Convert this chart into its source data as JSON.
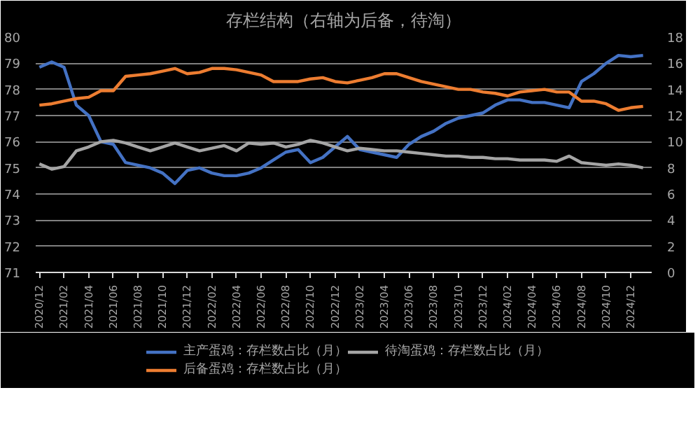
{
  "chart_data": {
    "type": "line",
    "title": "存栏结构（右轴为后备，待淘）",
    "categories": [
      "2020/12",
      null,
      "2021/02",
      null,
      "2021/04",
      null,
      "2021/06",
      null,
      "2021/08",
      null,
      "2021/10",
      null,
      "2021/12",
      null,
      "2022/02",
      null,
      "2022/04",
      null,
      "2022/06",
      null,
      "2022/08",
      null,
      "2022/10",
      null,
      "2022/12",
      null,
      "2023/02",
      null,
      "2023/04",
      null,
      "2023/06",
      null,
      "2023/08",
      null,
      "2023/10",
      null,
      "2023/12",
      null,
      "2024/02",
      null,
      "2024/04",
      null,
      "2024/06",
      null,
      "2024/08",
      null,
      "2024/10",
      null,
      "2024/12",
      null
    ],
    "series": [
      {
        "name": "主产蛋鸡：存栏数占比（月）",
        "color": "#4472c4",
        "values": [
          78.85,
          79.05,
          78.85,
          77.4,
          77.0,
          76.0,
          75.9,
          75.2,
          75.1,
          75.0,
          74.8,
          74.4,
          74.9,
          75.0,
          74.8,
          74.7,
          74.7,
          74.8,
          75.0,
          75.3,
          75.6,
          75.7,
          75.2,
          75.4,
          75.8,
          76.2,
          75.7,
          75.6,
          75.5,
          75.4,
          75.9,
          76.2,
          76.4,
          76.7,
          76.9,
          77.0,
          77.1,
          77.4,
          77.6,
          77.6,
          77.5,
          77.5,
          77.4,
          77.3,
          78.3,
          78.6,
          79.0,
          79.3,
          79.25,
          79.3
        ]
      },
      {
        "name": "后备蛋鸡：存栏数占比（月）",
        "color": "#ed7d31",
        "axis": "y2",
        "values": [
          12.8,
          12.9,
          13.1,
          13.3,
          13.4,
          13.9,
          13.9,
          15.0,
          15.1,
          15.2,
          15.4,
          15.6,
          15.2,
          15.3,
          15.6,
          15.6,
          15.5,
          15.3,
          15.1,
          14.6,
          14.6,
          14.6,
          14.8,
          14.9,
          14.6,
          14.5,
          14.7,
          14.9,
          15.2,
          15.2,
          14.9,
          14.6,
          14.4,
          14.2,
          14.0,
          14.0,
          13.8,
          13.7,
          13.5,
          13.8,
          13.9,
          14.0,
          13.8,
          13.8,
          13.1,
          13.1,
          12.9,
          12.4,
          12.6,
          12.7
        ]
      },
      {
        "name": "待淘蛋鸡：存栏数占比（月）",
        "color": "#a5a5a5",
        "axis": "y2",
        "values": [
          8.3,
          7.9,
          8.1,
          9.3,
          9.6,
          10.0,
          10.1,
          9.9,
          9.6,
          9.3,
          9.6,
          9.9,
          9.6,
          9.3,
          9.5,
          9.7,
          9.3,
          9.9,
          9.8,
          9.9,
          9.6,
          9.8,
          10.1,
          9.9,
          9.6,
          9.3,
          9.5,
          9.4,
          9.3,
          9.3,
          9.2,
          9.1,
          9.0,
          8.9,
          8.9,
          8.8,
          8.8,
          8.7,
          8.7,
          8.6,
          8.6,
          8.6,
          8.5,
          8.9,
          8.4,
          8.3,
          8.2,
          8.3,
          8.2,
          8.0
        ]
      }
    ],
    "ylim": [
      71,
      80
    ],
    "yticks": [
      71,
      72,
      73,
      74,
      75,
      76,
      77,
      78,
      79,
      80
    ],
    "y2lim": [
      0,
      18
    ],
    "y2ticks": [
      0,
      2,
      4,
      6,
      8,
      10,
      12,
      14,
      16,
      18
    ],
    "grid": "y",
    "legend": "bottom",
    "marker": "none",
    "line_style": "solid"
  }
}
